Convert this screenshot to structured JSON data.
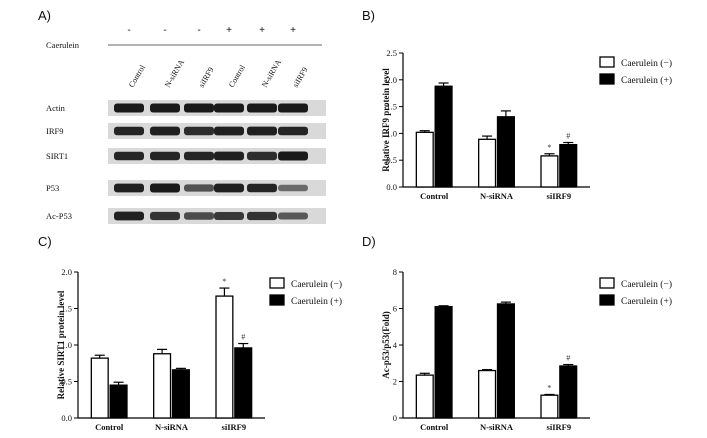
{
  "western_blot": {
    "letter": "A)",
    "treatment_label": "Caerulein",
    "signs": [
      "-",
      "-",
      "-",
      "+",
      "+",
      "+"
    ],
    "lanes": [
      "Control",
      "N-siRNA",
      "siIRF9",
      "Control",
      "N-siRNA",
      "siIRF9"
    ],
    "proteins": [
      "Actin",
      "IRF9",
      "SIRT1",
      "P53",
      "Ac-P53"
    ],
    "colors": {
      "strip_bg": "#d9d9d9",
      "band": "#1a1a1a"
    }
  },
  "chart_data": [
    {
      "panel": "B)",
      "type": "bar",
      "ylabel": "Relative IRF9 protein level",
      "categories": [
        "Control",
        "N-siRNA",
        "siIRF9"
      ],
      "ylim": [
        0,
        2.5
      ],
      "yticks": [
        "0.0",
        "0.5",
        "1.0",
        "1.5",
        "2.0",
        "2.5"
      ],
      "series": [
        {
          "name": "Caerulein (−)",
          "values": [
            1.02,
            0.89,
            0.58
          ],
          "errors": [
            0.03,
            0.06,
            0.04
          ],
          "fill": "#ffffff",
          "marks": [
            "",
            "",
            "*"
          ]
        },
        {
          "name": "Caerulein (+)",
          "values": [
            1.88,
            1.31,
            0.79
          ],
          "errors": [
            0.06,
            0.11,
            0.04
          ],
          "fill": "#000000",
          "marks": [
            "",
            "",
            "#"
          ]
        }
      ],
      "legend": "top-right",
      "grid": false
    },
    {
      "panel": "C)",
      "type": "bar",
      "ylabel": "Relative SIRT1 protein level",
      "categories": [
        "Control",
        "N-siRNA",
        "siIRF9"
      ],
      "ylim": [
        0,
        2.0
      ],
      "yticks": [
        "0.0",
        "0.5",
        "1.0",
        "1.5",
        "2.0"
      ],
      "series": [
        {
          "name": "Caerulein (−)",
          "values": [
            0.82,
            0.88,
            1.67
          ],
          "errors": [
            0.04,
            0.06,
            0.11
          ],
          "fill": "#ffffff",
          "marks": [
            "",
            "",
            "*"
          ]
        },
        {
          "name": "Caerulein (+)",
          "values": [
            0.45,
            0.66,
            0.96
          ],
          "errors": [
            0.04,
            0.02,
            0.06
          ],
          "fill": "#000000",
          "marks": [
            "",
            "",
            "#"
          ]
        }
      ],
      "legend": "top-right",
      "grid": false
    },
    {
      "panel": "D)",
      "type": "bar",
      "ylabel": "Ac-p53/p53(Fold)",
      "categories": [
        "Control",
        "N-siRNA",
        "siIRF9"
      ],
      "ylim": [
        0,
        8
      ],
      "yticks": [
        "0",
        "2",
        "4",
        "6",
        "8"
      ],
      "series": [
        {
          "name": "Caerulein (−)",
          "values": [
            2.35,
            2.6,
            1.25
          ],
          "errors": [
            0.1,
            0.05,
            0.04
          ],
          "fill": "#ffffff",
          "marks": [
            "",
            "",
            "*"
          ]
        },
        {
          "name": "Caerulein (+)",
          "values": [
            6.1,
            6.25,
            2.85
          ],
          "errors": [
            0.05,
            0.1,
            0.08
          ],
          "fill": "#000000",
          "marks": [
            "",
            "",
            "#"
          ]
        }
      ],
      "legend": "top-right",
      "grid": false
    }
  ]
}
